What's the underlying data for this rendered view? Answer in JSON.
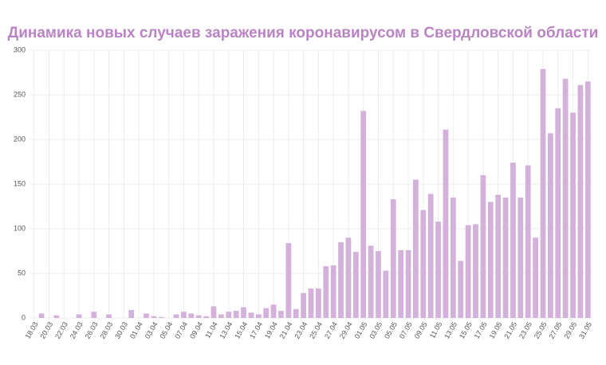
{
  "chart_data": {
    "type": "bar",
    "title": "Динамика новых случаев заражения коронавирусом в Свердловской области",
    "categories": [
      "18.03",
      null,
      "20.03",
      null,
      "22.03",
      null,
      "24.03",
      null,
      "26.03",
      null,
      "28.03",
      null,
      "30.03",
      null,
      "01.04",
      null,
      "03.04",
      null,
      "05.04",
      null,
      "07.04",
      null,
      "09.04",
      null,
      "11.04",
      null,
      "13.04",
      null,
      "15.04",
      null,
      "17.04",
      null,
      "19.04",
      null,
      "21.04",
      null,
      "23.04",
      null,
      "25.04",
      null,
      "27.04",
      null,
      "29.04",
      null,
      "01.05",
      null,
      "03.05",
      null,
      "05.05",
      null,
      "07.05",
      null,
      "09.05",
      null,
      "11.05",
      null,
      "13.05",
      null,
      "15.05",
      null,
      "17.05",
      null,
      "19.05",
      null,
      "21.05",
      null,
      "23.05",
      null,
      "25.05",
      null,
      "27.05",
      null,
      "29.05",
      null,
      "31.05"
    ],
    "values": [
      0,
      5,
      0,
      3,
      0,
      0,
      4,
      0,
      7,
      0,
      4,
      0,
      0,
      9,
      0,
      5,
      2,
      1,
      0,
      4,
      7,
      5,
      3,
      2,
      13,
      4,
      7,
      8,
      12,
      6,
      4,
      11,
      15,
      8,
      84,
      10,
      28,
      33,
      33,
      58,
      59,
      85,
      90,
      74,
      232,
      81,
      75,
      53,
      133,
      76,
      76,
      155,
      121,
      139,
      108,
      211,
      135,
      64,
      104,
      105,
      160,
      130,
      138,
      135,
      174,
      135,
      171,
      90,
      279,
      207,
      235,
      268,
      230,
      261,
      265
    ],
    "color": "#d3b1da",
    "ylim": [
      0,
      300
    ],
    "yticks": [
      0,
      50,
      100,
      150,
      200,
      250,
      300
    ],
    "grid": true
  }
}
